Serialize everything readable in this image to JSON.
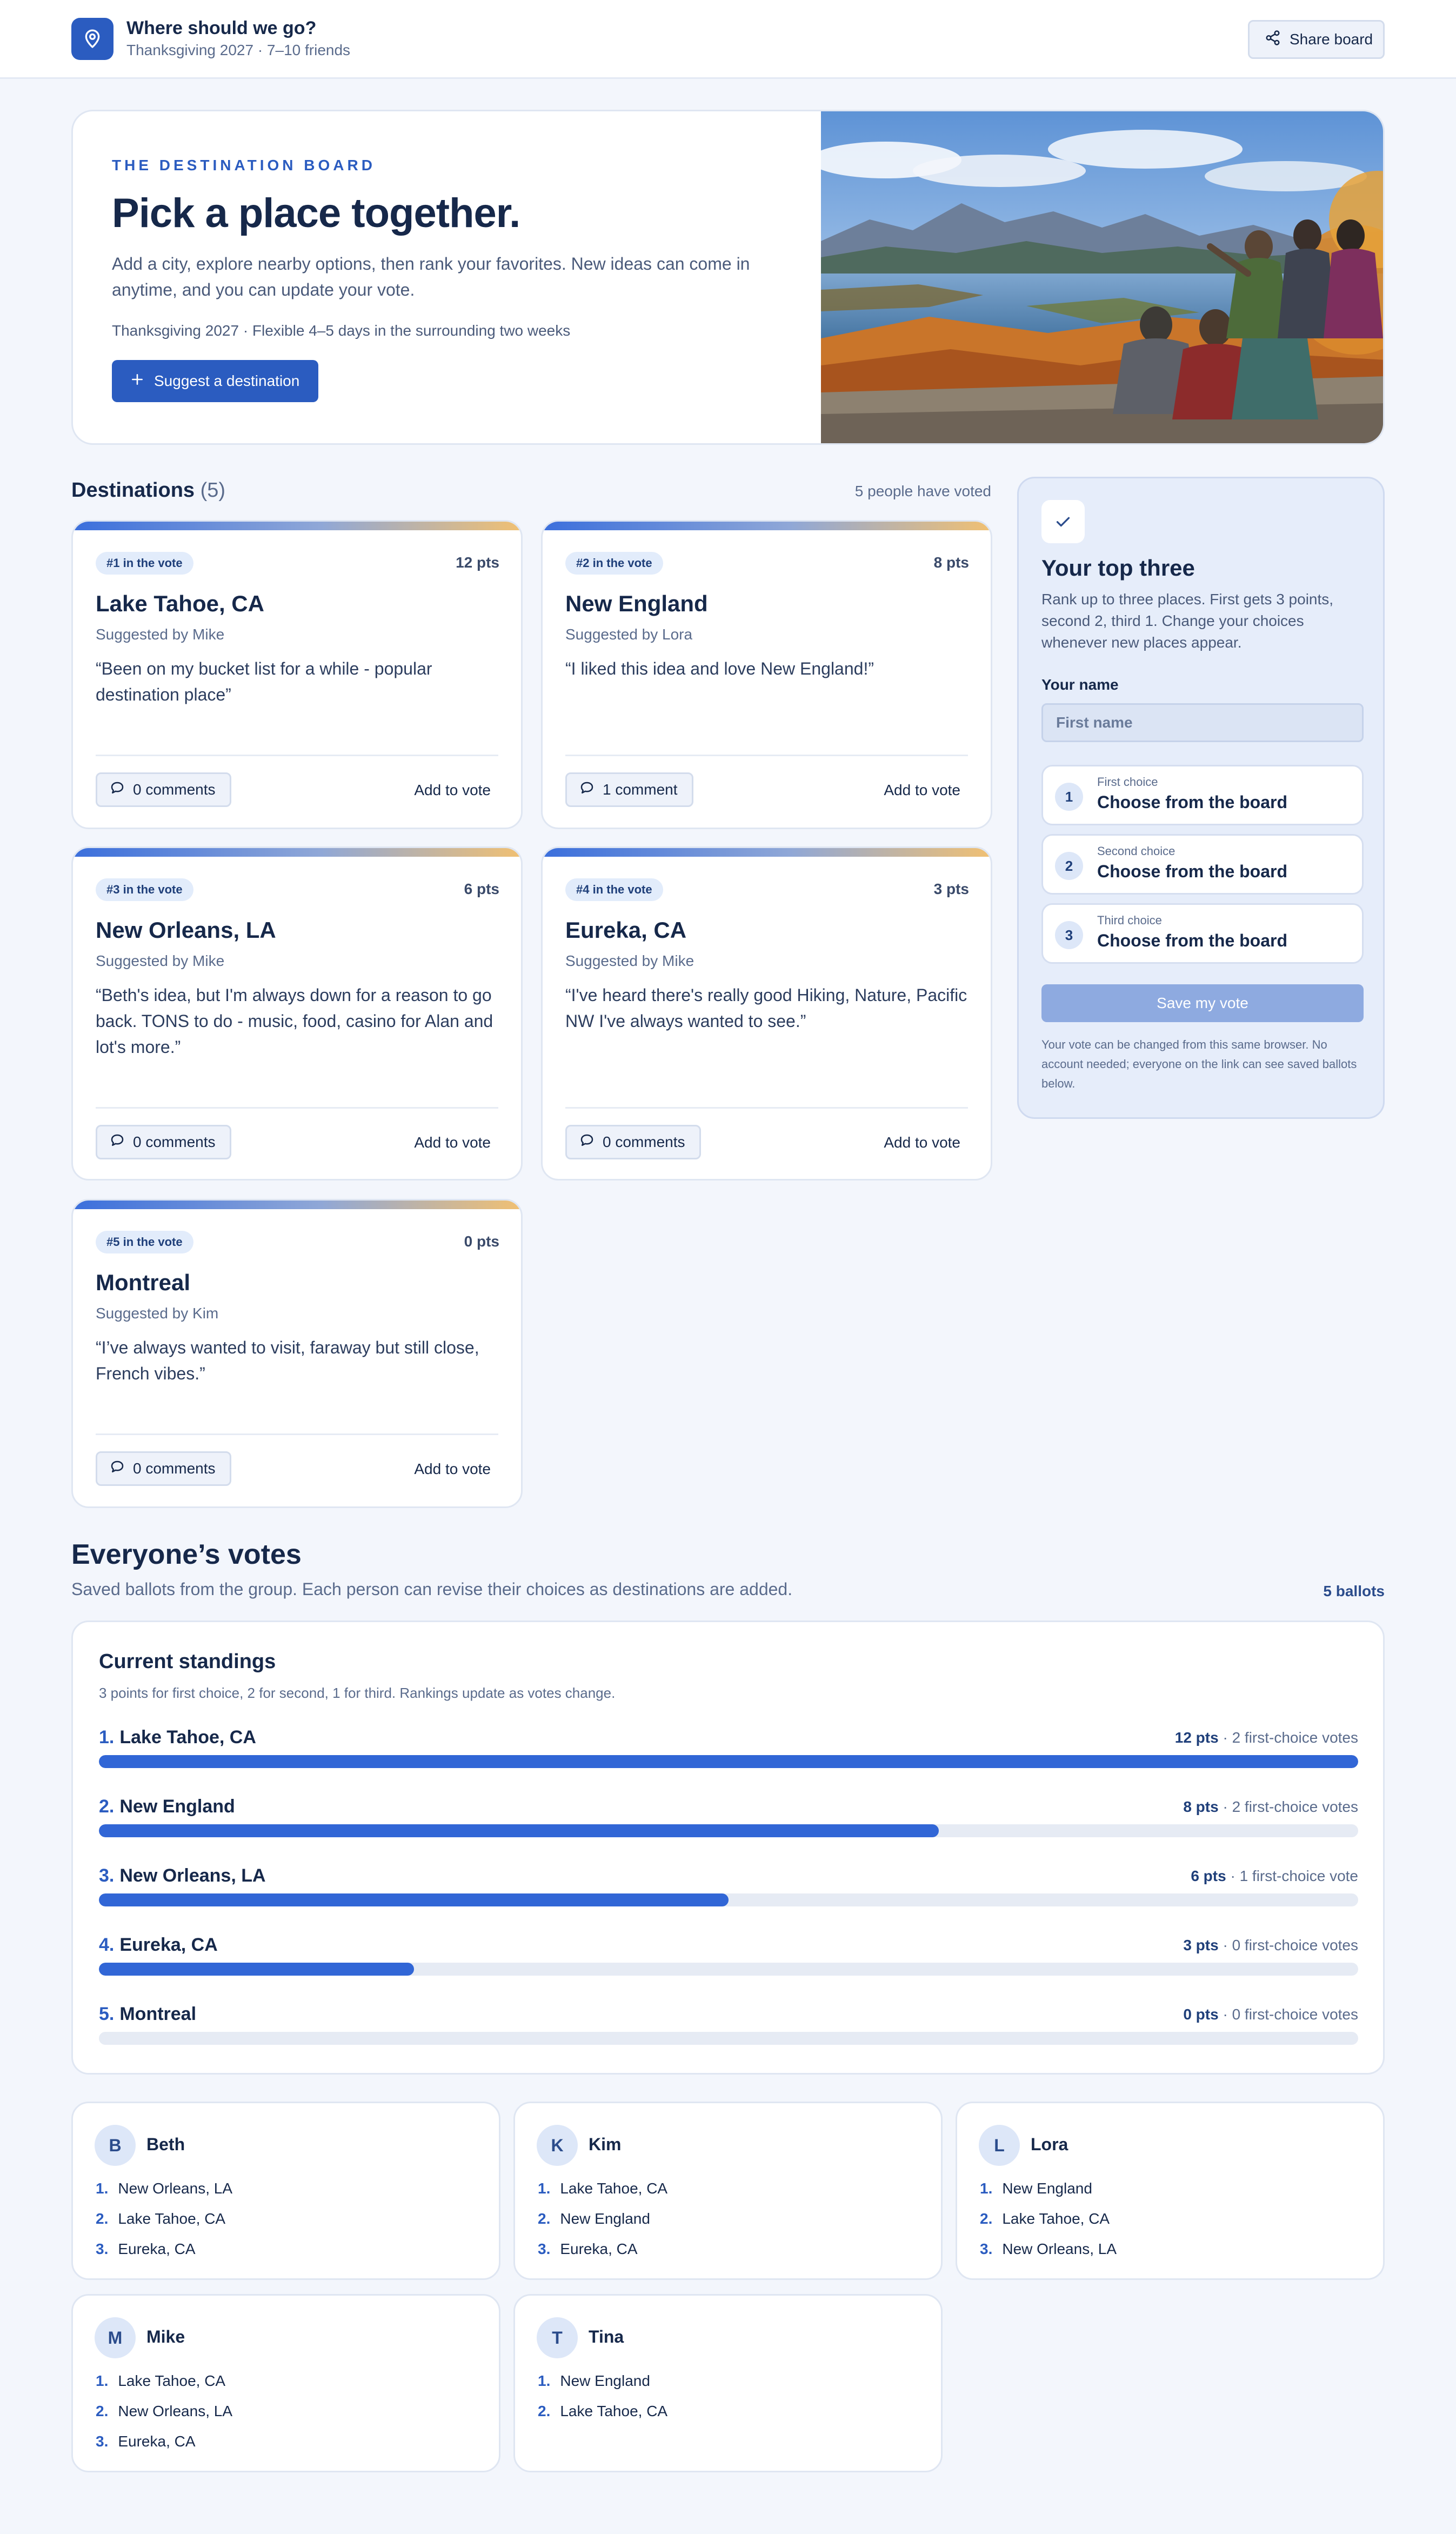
{
  "app": {
    "title": "Where should we go?",
    "subtitle": "Thanksgiving 2027 · 7–10 friends",
    "share_label": "Share board"
  },
  "hero": {
    "eyebrow": "THE DESTINATION BOARD",
    "title": "Pick a place together.",
    "description": "Add a city, explore nearby options, then rank your favorites. New ideas can come in anytime, and you can update your vote.",
    "note": "Thanksgiving 2027 · Flexible 4–5 days in the surrounding two weeks",
    "suggest_label": "Suggest a destination"
  },
  "destinations": {
    "heading": "Destinations",
    "count": "(5)",
    "voted_text": "5 people have voted",
    "add_vote_label": "Add to vote",
    "cards": [
      {
        "rank": "#1 in the vote",
        "points": "12 pts",
        "name": "Lake Tahoe, CA",
        "suggested_by": "Suggested by Mike",
        "quote": "“Been on my bucket list for a while - popular destination place”",
        "comments": "0 comments"
      },
      {
        "rank": "#2 in the vote",
        "points": "8 pts",
        "name": "New England",
        "suggested_by": "Suggested by Lora",
        "quote": "“I liked this idea and love New England!”",
        "comments": "1 comment"
      },
      {
        "rank": "#3 in the vote",
        "points": "6 pts",
        "name": "New Orleans, LA",
        "suggested_by": "Suggested by Mike",
        "quote": "“Beth's idea, but I'm always down for a reason to go back. TONS to do - music, food, casino for Alan and lot's more.”",
        "comments": "0 comments"
      },
      {
        "rank": "#4 in the vote",
        "points": "3 pts",
        "name": "Eureka, CA",
        "suggested_by": "Suggested by Mike",
        "quote": "“I've heard there's really good Hiking, Nature, Pacific NW I've always wanted to see.”",
        "comments": "0 comments"
      },
      {
        "rank": "#5 in the vote",
        "points": "0 pts",
        "name": "Montreal",
        "suggested_by": "Suggested by Kim",
        "quote": "“I’ve always wanted to visit, faraway but still close, French vibes.”",
        "comments": "0 comments"
      }
    ]
  },
  "vote_panel": {
    "title": "Your top three",
    "description": "Rank up to three places. First gets 3 points, second 2, third 1. Change your choices whenever new places appear.",
    "name_label": "Your name",
    "name_placeholder": "First name",
    "choices": [
      {
        "num": "1",
        "label": "First choice",
        "value": "Choose from the board"
      },
      {
        "num": "2",
        "label": "Second choice",
        "value": "Choose from the board"
      },
      {
        "num": "3",
        "label": "Third choice",
        "value": "Choose from the board"
      }
    ],
    "save_label": "Save my vote",
    "footnote": "Your vote can be changed from this same browser. No account needed; everyone on the link can see saved ballots below."
  },
  "votes": {
    "title": "Everyone’s votes",
    "subtitle": "Saved ballots from the group. Each person can revise their choices as destinations are added.",
    "ballots_count": "5 ballots"
  },
  "standings": {
    "title": "Current standings",
    "subtitle": "3 points for first choice, 2 for second, 1 for third. Rankings update as votes change.",
    "rows": [
      {
        "rank": "1.",
        "name": "Lake Tahoe, CA",
        "points": "12 pts",
        "first_votes": "· 2 first-choice votes",
        "fill": 1.0
      },
      {
        "rank": "2.",
        "name": "New England",
        "points": "8 pts",
        "first_votes": "· 2 first-choice votes",
        "fill": 0.667
      },
      {
        "rank": "3.",
        "name": "New Orleans, LA",
        "points": "6 pts",
        "first_votes": "· 1 first-choice vote",
        "fill": 0.5
      },
      {
        "rank": "4.",
        "name": "Eureka, CA",
        "points": "3 pts",
        "first_votes": "· 0 first-choice votes",
        "fill": 0.25
      },
      {
        "rank": "5.",
        "name": "Montreal",
        "points": "0 pts",
        "first_votes": "· 0 first-choice votes",
        "fill": 0.0
      }
    ]
  },
  "ballots": [
    {
      "initial": "B",
      "name": "Beth",
      "picks": [
        {
          "num": "1.",
          "place": "New Orleans, LA"
        },
        {
          "num": "2.",
          "place": "Lake Tahoe, CA"
        },
        {
          "num": "3.",
          "place": "Eureka, CA"
        }
      ]
    },
    {
      "initial": "K",
      "name": "Kim",
      "picks": [
        {
          "num": "1.",
          "place": "Lake Tahoe, CA"
        },
        {
          "num": "2.",
          "place": "New England"
        },
        {
          "num": "3.",
          "place": "Eureka, CA"
        }
      ]
    },
    {
      "initial": "L",
      "name": "Lora",
      "picks": [
        {
          "num": "1.",
          "place": "New England"
        },
        {
          "num": "2.",
          "place": "Lake Tahoe, CA"
        },
        {
          "num": "3.",
          "place": "New Orleans, LA"
        }
      ]
    },
    {
      "initial": "M",
      "name": "Mike",
      "picks": [
        {
          "num": "1.",
          "place": "Lake Tahoe, CA"
        },
        {
          "num": "2.",
          "place": "New Orleans, LA"
        },
        {
          "num": "3.",
          "place": "Eureka, CA"
        }
      ]
    },
    {
      "initial": "T",
      "name": "Tina",
      "picks": [
        {
          "num": "1.",
          "place": "New England"
        },
        {
          "num": "2.",
          "place": "Lake Tahoe, CA"
        }
      ]
    }
  ],
  "colors": {
    "accent": "#2b5cc0",
    "bar_fill": "#3166d6",
    "page_bg": "#f3f6fc"
  }
}
